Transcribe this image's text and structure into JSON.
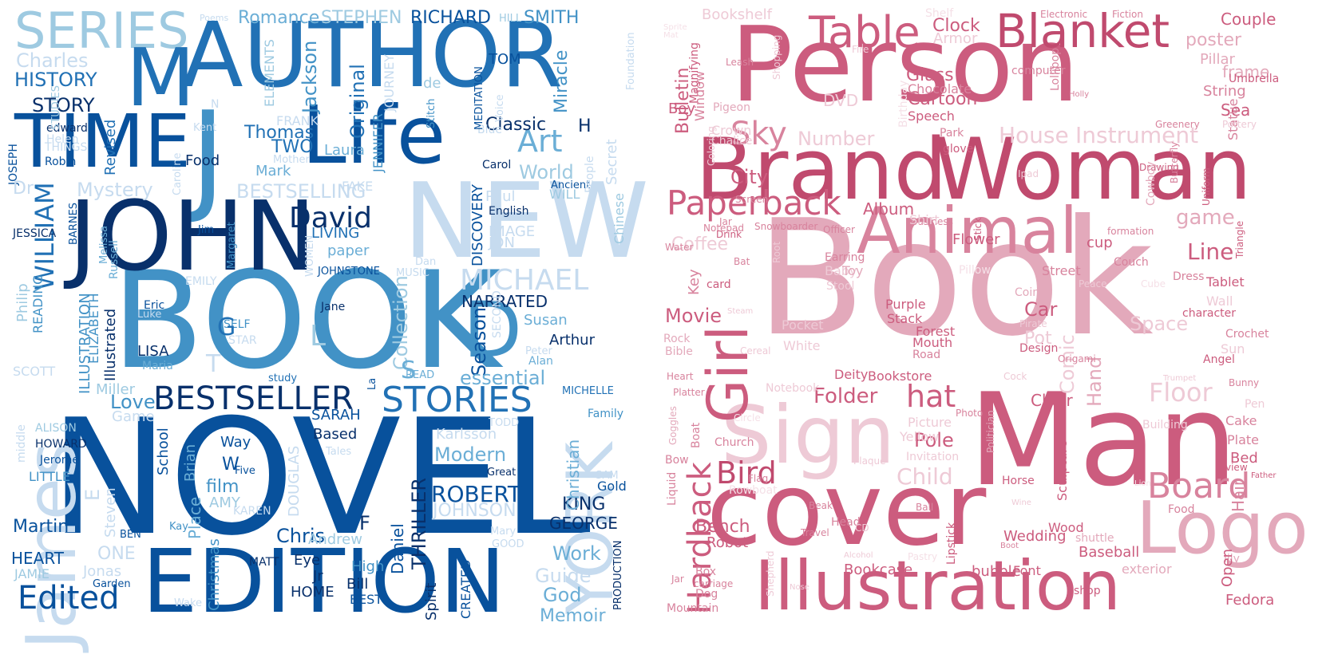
{
  "palettes": {
    "blues": [
      "#08306b",
      "#08519c",
      "#2171b5",
      "#4292c6",
      "#6baed6",
      "#9ecae1",
      "#c6dbef",
      "#deebf7"
    ],
    "pinks": [
      "#a53a5e",
      "#c04a6e",
      "#cc5c7e",
      "#d8839d",
      "#e3a9bb",
      "#eecad6",
      "#f5e0e7"
    ]
  },
  "left_cloud": {
    "words": [
      "SERIES",
      "AUTHOR",
      "M",
      "TIME",
      "J",
      "Life",
      "NEW",
      "BOOK",
      "JOHN",
      "D",
      "NOVEL",
      "EDITION",
      "James",
      "YORK",
      "BESTSELLER",
      "STORIES",
      "Edited",
      "David",
      "Art",
      "MICHAEL",
      "WILLIAM",
      "ROBERT",
      "KING",
      "GEORGE",
      "Classic",
      "H",
      "Martin",
      "HEART",
      "Romance",
      "STEPHEN",
      "RICHARD",
      "SMITH",
      "HILL",
      "Poems",
      "TOM",
      "Charles",
      "HISTORY",
      "STORY",
      "Thomas",
      "TWO",
      "Laura",
      "Mark",
      "BESTSELLING",
      "World",
      "Mystery",
      "Original",
      "Jackson",
      "Miracle",
      "Food",
      "Paul",
      "IMAGE",
      "JON",
      "LIVING",
      "paper",
      "DISCOVERY",
      "NARRATED",
      "Season",
      "Susan",
      "Arthur",
      "essential",
      "Collection",
      "SARAH",
      "Based",
      "Modern",
      "Karlsson",
      "School",
      "Brian",
      "film",
      "AMY",
      "W",
      "Five",
      "Great",
      "Gold",
      "Christian",
      "THRILLER",
      "Daniel",
      "JOHNSON",
      "Chris",
      "Work",
      "Guide",
      "God",
      "Memoir",
      "Eye",
      "Jr",
      "HOME",
      "Bill",
      "BEST",
      "High",
      "Spirit",
      "CREATED",
      "PRODUCTION",
      "Christmas",
      "Garden",
      "Jonas",
      "ONE",
      "Wake",
      "JAMIE",
      "ALISON",
      "HOWARD",
      "Jerome",
      "LITTLE",
      "middle",
      "SCOTT",
      "LISA",
      "Maria",
      "Eric",
      "Luke",
      "Jane",
      "SELF",
      "STAR",
      "READ",
      "study",
      "Alan",
      "Peter",
      "MICHELLE",
      "Family",
      "Illustrated",
      "ILLUSTRATION",
      "ELIZABETH",
      "READING",
      "Philip",
      "JESSICA",
      "Jim",
      "Margaret",
      "EMILY",
      "Russell",
      "Melissa",
      "BARNES",
      "WILL",
      "Ancient",
      "English",
      "Carol",
      "Blue",
      "People",
      "Secret",
      "Chinese",
      "Foundation",
      "JOSEPH",
      "edward",
      "Helen",
      "THINGS",
      "Robin",
      "Dr",
      "Kent",
      "Caroline",
      "Mother",
      "FAKE",
      "FRANK",
      "JENNIFER",
      "JOURNEY",
      "MEDITATION",
      "Voice",
      "Stitch",
      "de",
      "ELEMENTS",
      "STUDIES",
      "N",
      "Love",
      "E",
      "Miller",
      "Game",
      "Way",
      "Place",
      "Steven",
      "DOUGLAS",
      "Andrew",
      "KAREN",
      "MATT",
      "BEN",
      "Kay",
      "Mary",
      "GOOD",
      "SAM",
      "TODD",
      "Tales",
      "Dan",
      "MUSIC",
      "WOMEN",
      "JOHNSTONE",
      "Revised",
      "G",
      "L",
      "T",
      "S",
      "F",
      "La",
      "SECOND"
    ]
  },
  "right_cloud": {
    "words": [
      "Person",
      "Book",
      "Man",
      "Brand",
      "Woman",
      "cover",
      "Illustration",
      "Sign",
      "Logo",
      "Animal",
      "Table",
      "Blanket",
      "Paperback",
      "Girl",
      "Board",
      "Hardback",
      "Bird",
      "Sky",
      "City",
      "Glass",
      "Cartoon",
      "DVD",
      "Number",
      "House",
      "Instrument",
      "game",
      "Line",
      "Floor",
      "Folder",
      "hat",
      "Hand",
      "Comic",
      "Pole",
      "Child",
      "Bench",
      "Robot",
      "Coffee",
      "Movie",
      "Album",
      "Flower",
      "Car",
      "Chair",
      "Bulletin",
      "Window",
      "Boy",
      "Magnifying",
      "Clock",
      "Armor",
      "poster",
      "Couple",
      "Pillar",
      "frame",
      "Umbrella",
      "String",
      "Sea",
      "Statue",
      "Bookshelf",
      "Shelf",
      "Electronic",
      "Fiction",
      "Fire",
      "Leash",
      "Shopping",
      "Birthday",
      "computer",
      "Chocolate",
      "Speech",
      "Holly",
      "Lollipop",
      "Pigeon",
      "Crown",
      "Chalice",
      "Greenery",
      "Pottery",
      "Coloring",
      "Park",
      "glove",
      "Drawing",
      "Butterfly",
      "Ipad",
      "Screen",
      "Uniform",
      "Cowboy",
      "Jar",
      "Business",
      "Notepad",
      "Drink",
      "Snowboarder",
      "Officer",
      "Stick",
      "cup",
      "formation",
      "Triangle",
      "Shirt",
      "Water",
      "Bat",
      "Root",
      "Earring",
      "Baby",
      "Toy",
      "Pillow",
      "Street",
      "Couch",
      "Dress",
      "Key",
      "card",
      "Stool",
      "Cube",
      "Peace",
      "Tablet",
      "Coin",
      "Purple",
      "Stack",
      "Wall",
      "character",
      "Pocket",
      "Pirate",
      "Space",
      "Crochet",
      "Rock",
      "Bible",
      "Cereal",
      "White",
      "Steam",
      "Forest",
      "Mouth",
      "Road",
      "Pot",
      "Design",
      "Sun",
      "Angel",
      "Deity",
      "Bookstore",
      "Heart",
      "Platter",
      "Notebook",
      "Origami",
      "Cock",
      "Trumpet",
      "Bunny",
      "Goggles",
      "Boat",
      "Circle",
      "Picture",
      "Photo",
      "Yellow",
      "Building",
      "Cake",
      "Plate",
      "Pen",
      "Church",
      "Invitation",
      "Politician",
      "Bed",
      "view",
      "Bow",
      "Flag",
      "Plaque",
      "Horse",
      "Sculpture",
      "Father",
      "Lion",
      "Liquid",
      "Rowboat",
      "Beak",
      "Ball",
      "Wine",
      "Food",
      "Head",
      "Travel",
      "CD",
      "Wedding",
      "Wood",
      "shuttle",
      "Baseball",
      "Boot",
      "Alcohol",
      "Pastry",
      "Lipstick",
      "Box",
      "Bookcase",
      "Font",
      "bubble",
      "exterior",
      "lily",
      "Jar",
      "carriage",
      "Dog",
      "Shepherd",
      "Nose",
      "Mountain",
      "shop",
      "Open",
      "Fedora",
      "Hair",
      "Sprite",
      "Mat"
    ]
  }
}
